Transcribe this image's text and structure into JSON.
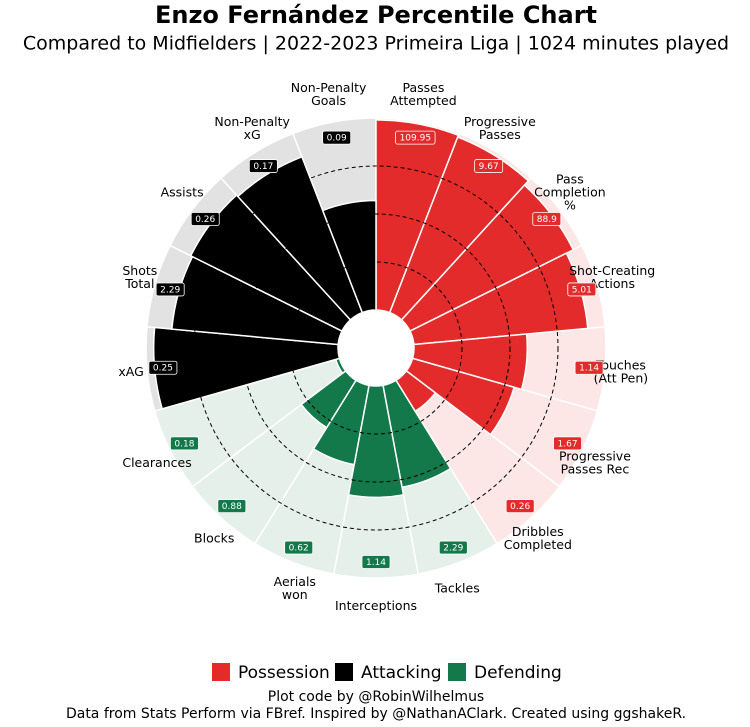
{
  "chart_data": {
    "type": "pizza",
    "title": "Enzo Fernández Percentile Chart",
    "subtitle": "Compared to Midfielders | 2022-2023 Primeira Liga | 1024 minutes played",
    "rlim": [
      0,
      100
    ],
    "rticks": [
      25,
      50,
      75
    ],
    "grid": true,
    "series": [
      {
        "name": "Possession",
        "color": "#e32b2b",
        "bg_color": "#fce6e6",
        "categories": [
          [
            "Passes",
            "Attempted"
          ],
          [
            "Progressive",
            "Passes"
          ],
          [
            "Pass",
            "Completion",
            "%"
          ],
          [
            "Shot-Creating",
            "Actions"
          ],
          [
            "Touches",
            "(Att Pen)"
          ],
          [
            "Progressive",
            "Passes Rec"
          ],
          [
            "Dribbles",
            "Completed"
          ]
        ],
        "values": [
          99,
          98,
          95,
          91,
          59,
          55,
          19
        ],
        "stats": [
          109.95,
          9.67,
          88.9,
          5.01,
          1.14,
          1.67,
          0.26
        ]
      },
      {
        "name": "Defending",
        "color": "#13794a",
        "bg_color": "#e6f0ea",
        "categories": [
          [
            "Tackles"
          ],
          [
            "Interceptions"
          ],
          [
            "Aerials",
            "won"
          ],
          [
            "Blocks"
          ],
          [
            "Clearances"
          ]
        ],
        "values": [
          54,
          58,
          42,
          29,
          2
        ],
        "stats": [
          2.29,
          1.14,
          0.62,
          0.88,
          0.18
        ]
      },
      {
        "name": "Attacking",
        "color": "#000000",
        "bg_color": "#e2e2e2",
        "categories": [
          [
            "xAG"
          ],
          [
            "Shots",
            "Total"
          ],
          [
            "Assists"
          ],
          [
            "Non-Penalty",
            "xG"
          ],
          [
            "Non-Penalty",
            "Goals"
          ]
        ],
        "values": [
          96,
          87,
          88,
          87,
          57
        ],
        "stats": [
          0.25,
          2.29,
          0.26,
          0.17,
          0.09
        ]
      }
    ],
    "footnotes": [
      "Plot code by @RobinWilhelmus",
      "Data from Stats Perform via FBref. Inspired by @NathanAClark. Created using ggshakeR."
    ]
  }
}
